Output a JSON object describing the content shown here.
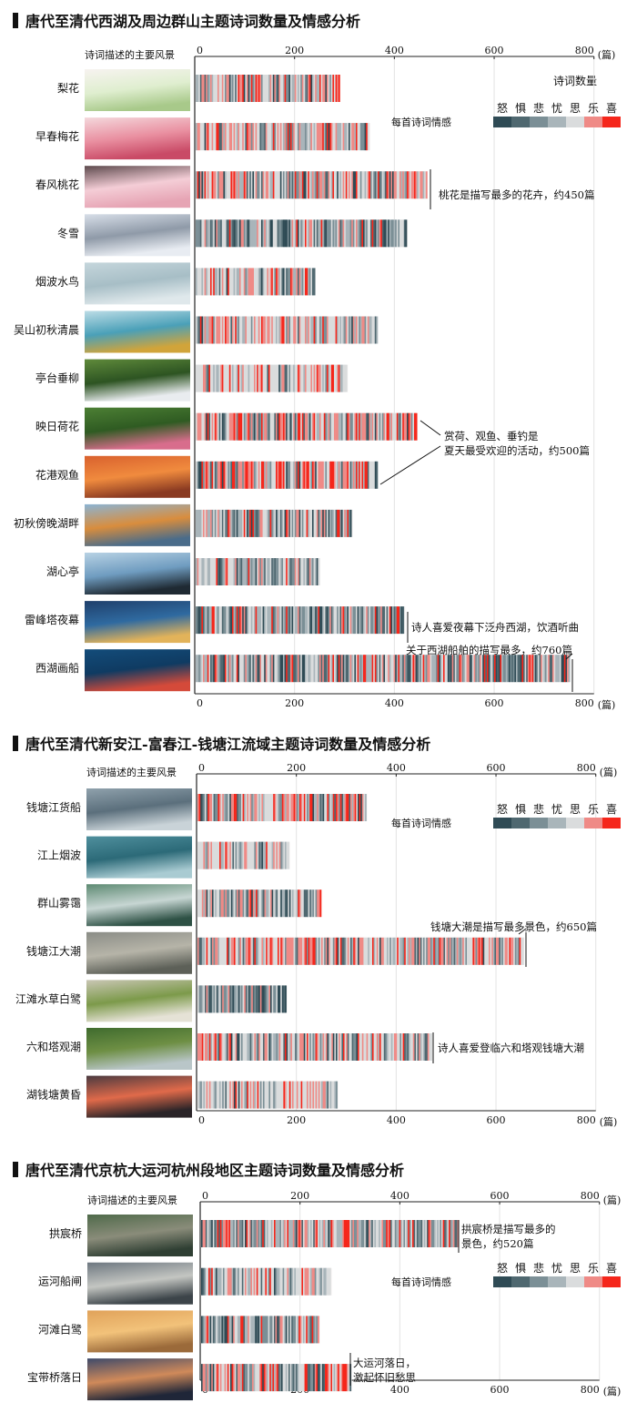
{
  "page": {
    "background": "#ffffff"
  },
  "emotion_scale": {
    "label": "每首诗词情感",
    "categories": [
      "怒",
      "惧",
      "悲",
      "忧",
      "思",
      "乐",
      "喜"
    ],
    "colors": [
      "#2f4b55",
      "#4f6870",
      "#7b8f96",
      "#a9b5ba",
      "#dadcdd",
      "#ef8a86",
      "#f5261b"
    ]
  },
  "charts": [
    {
      "title": "唐代至清代西湖及周边群山主题诗词数量及情感分析",
      "row_header": "诗词描述的主要风景",
      "unit_label": "(篇)",
      "value_label": "诗词数量",
      "tick_labels": [
        "0",
        "200",
        "400",
        "600",
        "800"
      ],
      "rows": [
        {
          "label": "梨花",
          "photo": "pear-blossom-photo",
          "colors": [
            "#f7f3f0",
            "#dfeecf",
            "#a8c98a"
          ]
        },
        {
          "label": "早春梅花",
          "photo": "plum-blossom-photo",
          "colors": [
            "#f4d8dc",
            "#e98fa0",
            "#c94a66"
          ]
        },
        {
          "label": "春风桃花",
          "photo": "peach-blossom-photo",
          "colors": [
            "#5d4a4d",
            "#f4cdd6",
            "#e6a4b4"
          ]
        },
        {
          "label": "冬雪",
          "photo": "winter-snow-photo",
          "colors": [
            "#d7dee8",
            "#8f9aa8",
            "#e8ecf2"
          ]
        },
        {
          "label": "烟波水鸟",
          "photo": "mist-waterbird-photo",
          "colors": [
            "#c5d6dc",
            "#a7bec6",
            "#dfe8eb"
          ]
        },
        {
          "label": "吴山初秋清晨",
          "photo": "wushan-autumn-photo",
          "colors": [
            "#bcdce6",
            "#4aa0b8",
            "#d1a43a"
          ]
        },
        {
          "label": "亭台垂柳",
          "photo": "pavilion-willow-photo",
          "colors": [
            "#5f8a3b",
            "#2d5422",
            "#e9ecef"
          ]
        },
        {
          "label": "映日荷花",
          "photo": "lotus-photo",
          "colors": [
            "#4c7f34",
            "#2f5b22",
            "#d86d8c"
          ]
        },
        {
          "label": "花港观鱼",
          "photo": "koi-fish-photo",
          "colors": [
            "#d9612e",
            "#f08b3e",
            "#8a3a22"
          ]
        },
        {
          "label": "初秋傍晚湖畔",
          "photo": "autumn-lakeside-photo",
          "colors": [
            "#8bb4d4",
            "#d98d3d",
            "#4a6c8a"
          ]
        },
        {
          "label": "湖心亭",
          "photo": "lake-pavilion-photo",
          "colors": [
            "#b8d2e4",
            "#6f9cc0",
            "#1f2a33"
          ]
        },
        {
          "label": "雷峰塔夜幕",
          "photo": "leifeng-night-photo",
          "colors": [
            "#1f3f6b",
            "#2f6aa0",
            "#e2b35a"
          ]
        },
        {
          "label": "西湖画船",
          "photo": "painted-boat-photo",
          "colors": [
            "#134c7a",
            "#0f3b62",
            "#d44a3a"
          ]
        }
      ],
      "annotations": [
        {
          "text": "桃花是描写最多的花卉，约450篇"
        },
        {
          "text": "赏荷、观鱼、垂钓是"
        },
        {
          "text": "夏天最受欢迎的活动，约500篇"
        },
        {
          "text": "诗人喜爱夜幕下泛舟西湖，饮酒听曲"
        },
        {
          "text": "关于西湖船舶的描写最多，约760篇"
        }
      ]
    },
    {
      "title": "唐代至清代新安江-富春江-钱塘江流域主题诗词数量及情感分析",
      "row_header": "诗词描述的主要风景",
      "unit_label": "(篇)",
      "tick_labels": [
        "0",
        "200",
        "400",
        "600",
        "800"
      ],
      "rows": [
        {
          "label": "钱塘江货船",
          "photo": "cargo-ship-photo",
          "colors": [
            "#8fa1ac",
            "#5b6f7c",
            "#c9d3d8"
          ]
        },
        {
          "label": "江上烟波",
          "photo": "river-mist-photo",
          "colors": [
            "#4f8f9d",
            "#2c6a78",
            "#a9cbd2"
          ]
        },
        {
          "label": "群山雾霭",
          "photo": "mountain-fog-photo",
          "colors": [
            "#5d8a72",
            "#c7d6d3",
            "#2e5145"
          ]
        },
        {
          "label": "钱塘江大潮",
          "photo": "tidal-bore-photo",
          "colors": [
            "#8a8c86",
            "#b6b4a8",
            "#5d6058"
          ]
        },
        {
          "label": "江滩水草白鹭",
          "photo": "egret-grass-photo",
          "colors": [
            "#c9c6b4",
            "#7c9a4a",
            "#e5e2d6"
          ]
        },
        {
          "label": "六和塔观潮",
          "photo": "liuhe-pagoda-photo",
          "colors": [
            "#3f6b2e",
            "#6e8f44",
            "#b9c6c8"
          ]
        },
        {
          "label": "湖钱塘黄昏",
          "photo": "qiantang-dusk-photo",
          "colors": [
            "#4a3a40",
            "#e06a4a",
            "#2a2428"
          ]
        }
      ],
      "annotations": [
        {
          "text": "钱塘大潮是描写最多景色，约650篇"
        },
        {
          "text": "诗人喜爱登临六和塔观钱塘大潮"
        }
      ]
    },
    {
      "title": "唐代至清代京杭大运河杭州段地区主题诗词数量及情感分析",
      "row_header": "诗词描述的主要风景",
      "unit_label": "(篇)",
      "tick_labels": [
        "0",
        "200",
        "400",
        "600",
        "800"
      ],
      "rows": [
        {
          "label": "拱宸桥",
          "photo": "gongchen-bridge-photo",
          "colors": [
            "#4f6a4a",
            "#8a8c7a",
            "#2f3f33"
          ]
        },
        {
          "label": "运河船闸",
          "photo": "canal-lock-photo",
          "colors": [
            "#6d7780",
            "#c4c6c2",
            "#3c4449"
          ]
        },
        {
          "label": "河滩白鹭",
          "photo": "shoal-egret-photo",
          "colors": [
            "#e0a25a",
            "#f2c27a",
            "#9b6a3a"
          ]
        },
        {
          "label": "宝带桥落日",
          "photo": "baodai-sunset-photo",
          "colors": [
            "#3e4a6a",
            "#d08a5a",
            "#1f2638"
          ]
        }
      ],
      "annotations": [
        {
          "text": "拱宸桥是描写最多的"
        },
        {
          "text": "景色，约520篇"
        },
        {
          "text": "大运河落日，"
        },
        {
          "text": "激起怀旧愁思"
        }
      ]
    }
  ],
  "chart_data": [
    {
      "type": "bar",
      "title": "唐代至清代西湖及周边群山主题诗词数量及情感分析",
      "xlabel": "诗词数量",
      "unit": "篇",
      "xlim": [
        0,
        800
      ],
      "grid": true,
      "categories": [
        "梨花",
        "早春梅花",
        "春风桃花",
        "冬雪",
        "烟波水鸟",
        "吴山初秋清晨",
        "亭台垂柳",
        "映日荷花",
        "花港观鱼",
        "初秋傍晚湖畔",
        "湖心亭",
        "雷峰塔夜幕",
        "西湖画船"
      ],
      "values": [
        290,
        350,
        465,
        425,
        240,
        365,
        305,
        445,
        365,
        315,
        250,
        420,
        750
      ],
      "emotion_mix": [
        [
          0.05,
          0.05,
          0.1,
          0.15,
          0.25,
          0.25,
          0.15
        ],
        [
          0.04,
          0.05,
          0.1,
          0.14,
          0.25,
          0.26,
          0.16
        ],
        [
          0.04,
          0.05,
          0.08,
          0.14,
          0.28,
          0.26,
          0.15
        ],
        [
          0.12,
          0.1,
          0.2,
          0.22,
          0.22,
          0.09,
          0.05
        ],
        [
          0.04,
          0.04,
          0.1,
          0.18,
          0.38,
          0.18,
          0.08
        ],
        [
          0.02,
          0.03,
          0.08,
          0.14,
          0.45,
          0.2,
          0.08
        ],
        [
          0.02,
          0.03,
          0.06,
          0.14,
          0.5,
          0.18,
          0.07
        ],
        [
          0.05,
          0.05,
          0.08,
          0.12,
          0.22,
          0.28,
          0.2
        ],
        [
          0.05,
          0.05,
          0.08,
          0.12,
          0.22,
          0.26,
          0.22
        ],
        [
          0.08,
          0.09,
          0.15,
          0.2,
          0.26,
          0.15,
          0.07
        ],
        [
          0.06,
          0.08,
          0.15,
          0.22,
          0.29,
          0.14,
          0.06
        ],
        [
          0.12,
          0.11,
          0.18,
          0.2,
          0.2,
          0.12,
          0.07
        ],
        [
          0.13,
          0.12,
          0.16,
          0.18,
          0.18,
          0.14,
          0.09
        ]
      ]
    },
    {
      "type": "bar",
      "title": "唐代至清代新安江-富春江-钱塘江流域主题诗词数量及情感分析",
      "unit": "篇",
      "xlim": [
        0,
        800
      ],
      "grid": true,
      "categories": [
        "钱塘江货船",
        "江上烟波",
        "群山雾霭",
        "钱塘江大潮",
        "江滩水草白鹭",
        "六和塔观潮",
        "湖钱塘黄昏"
      ],
      "values": [
        340,
        185,
        248,
        655,
        180,
        470,
        282
      ],
      "emotion_mix": [
        [
          0.07,
          0.07,
          0.1,
          0.13,
          0.22,
          0.23,
          0.18
        ],
        [
          0.02,
          0.03,
          0.07,
          0.14,
          0.5,
          0.18,
          0.06
        ],
        [
          0.1,
          0.1,
          0.16,
          0.2,
          0.22,
          0.14,
          0.08
        ],
        [
          0.03,
          0.04,
          0.08,
          0.12,
          0.38,
          0.24,
          0.11
        ],
        [
          0.16,
          0.14,
          0.18,
          0.2,
          0.16,
          0.1,
          0.06
        ],
        [
          0.05,
          0.06,
          0.1,
          0.15,
          0.32,
          0.22,
          0.1
        ],
        [
          0.02,
          0.03,
          0.06,
          0.12,
          0.52,
          0.18,
          0.07
        ]
      ]
    },
    {
      "type": "bar",
      "title": "唐代至清代京杭大运河杭州段地区主题诗词数量及情感分析",
      "unit": "篇",
      "xlim": [
        0,
        800
      ],
      "grid": true,
      "categories": [
        "拱宸桥",
        "运河船闸",
        "河滩白鹭",
        "宝带桥落日"
      ],
      "values": [
        518,
        262,
        238,
        302
      ],
      "emotion_mix": [
        [
          0.06,
          0.07,
          0.12,
          0.16,
          0.25,
          0.21,
          0.13
        ],
        [
          0.03,
          0.04,
          0.08,
          0.14,
          0.44,
          0.19,
          0.08
        ],
        [
          0.12,
          0.12,
          0.18,
          0.2,
          0.2,
          0.11,
          0.07
        ],
        [
          0.07,
          0.07,
          0.1,
          0.13,
          0.22,
          0.23,
          0.18
        ]
      ]
    }
  ]
}
